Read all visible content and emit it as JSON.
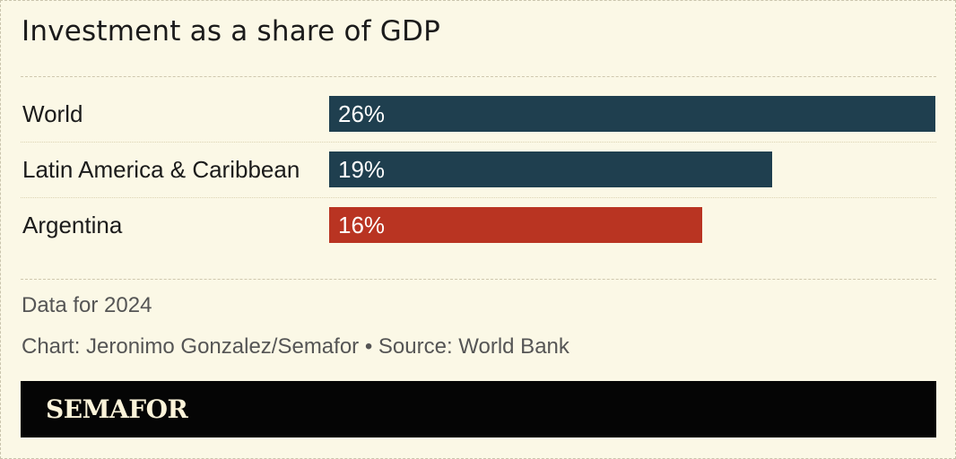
{
  "chart_data": {
    "type": "bar",
    "orientation": "horizontal",
    "title": "Investment as a share of GDP",
    "categories": [
      "World",
      "Latin America & Caribbean",
      "Argentina"
    ],
    "values": [
      26,
      19,
      16
    ],
    "value_labels": [
      "26%",
      "19%",
      "16%"
    ],
    "unit": "%",
    "colors": [
      "#1f3f4f",
      "#1f3f4f",
      "#b93422"
    ],
    "highlight_category": "Argentina",
    "xlim": [
      0,
      26
    ],
    "grid": false,
    "legend": "none"
  },
  "notes": {
    "data_note": "Data for 2024",
    "credit": "Chart: Jeronimo Gonzalez/Semafor • Source: World Bank"
  },
  "brand": {
    "logo_text": "SEMAFOR"
  }
}
